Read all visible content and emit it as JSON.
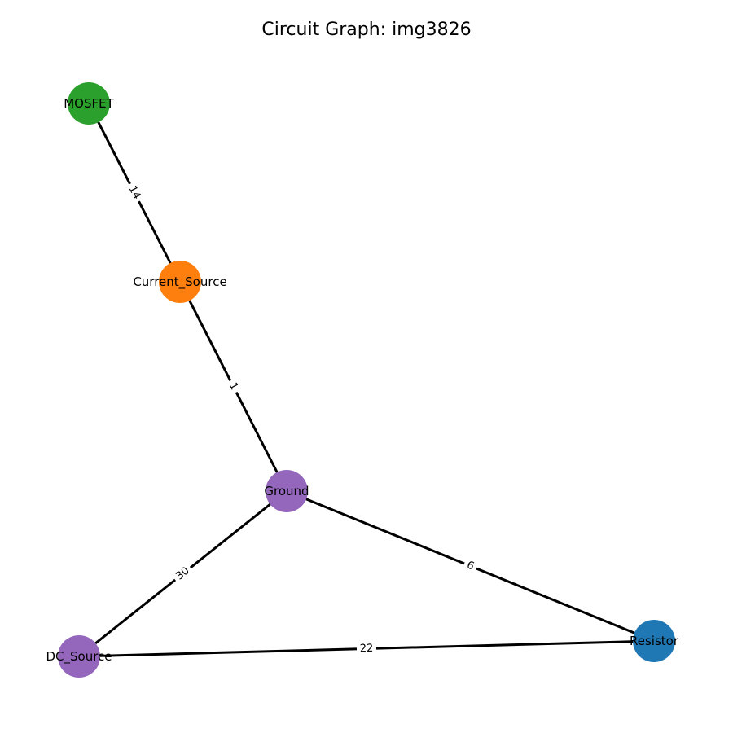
{
  "title": "Circuit Graph: img3826",
  "nodes": [
    {
      "id": "mosfet",
      "label": "MOSFET",
      "color": "#2ca02c"
    },
    {
      "id": "current_source",
      "label": "Current_Source",
      "color": "#ff7f0e"
    },
    {
      "id": "ground",
      "label": "Ground",
      "color": "#9467bd"
    },
    {
      "id": "dc_source",
      "label": "DC_Source",
      "color": "#9467bd"
    },
    {
      "id": "resistor",
      "label": "Resistor",
      "color": "#1f77b4"
    }
  ],
  "edges": [
    {
      "source": "mosfet",
      "target": "current_source",
      "label": "14"
    },
    {
      "source": "current_source",
      "target": "ground",
      "label": "1"
    },
    {
      "source": "ground",
      "target": "dc_source",
      "label": "30"
    },
    {
      "source": "ground",
      "target": "resistor",
      "label": "6"
    },
    {
      "source": "dc_source",
      "target": "resistor",
      "label": "22"
    }
  ]
}
